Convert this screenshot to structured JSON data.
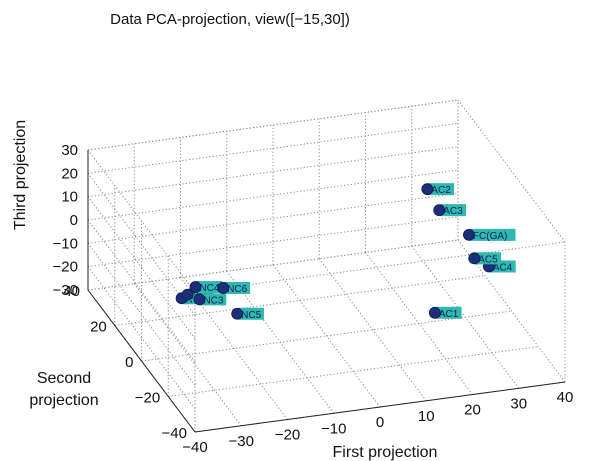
{
  "chart_data": {
    "type": "scatter",
    "title": "Data PCA-projection, view([−15,30])",
    "xlabel": "First projection",
    "ylabel": "Second projection",
    "zlabel": "Third projection",
    "xlim": [
      -40,
      40
    ],
    "ylim": [
      -40,
      40
    ],
    "zlim": [
      -30,
      30
    ],
    "xticks": [
      "−40",
      "−30",
      "−20",
      "−10",
      "0",
      "10",
      "20",
      "30",
      "40"
    ],
    "yticks": [
      "40",
      "20",
      "0",
      "−20",
      "−40"
    ],
    "zticks": [
      "30",
      "20",
      "10",
      "0",
      "−10",
      "−20",
      "−30"
    ],
    "grid": true,
    "marker_color": "#1c2f7a",
    "label_color": "#2fb8ad",
    "points": [
      {
        "label": "NC1",
        "x": -27,
        "y": 15,
        "z": -18
      },
      {
        "label": "NC2",
        "x": -26,
        "y": 14,
        "z": -16
      },
      {
        "label": "NC3",
        "x": -24,
        "y": 12,
        "z": -17
      },
      {
        "label": "NC4",
        "x": -24,
        "y": 15,
        "z": -14
      },
      {
        "label": "NC5",
        "x": -17,
        "y": 8,
        "z": -22
      },
      {
        "label": "NC6",
        "x": -18,
        "y": 15,
        "z": -16
      },
      {
        "label": "AC1",
        "x": 24,
        "y": 2,
        "z": -28
      },
      {
        "label": "AC2",
        "x": 27,
        "y": 18,
        "z": 12
      },
      {
        "label": "AC3",
        "x": 29,
        "y": 16,
        "z": 4
      },
      {
        "label": "AC4",
        "x": 38,
        "y": 10,
        "z": -18
      },
      {
        "label": "AC5",
        "x": 36,
        "y": 14,
        "z": -17
      },
      {
        "label": "FC(GA)",
        "x": 36,
        "y": 18,
        "z": -10
      }
    ]
  }
}
